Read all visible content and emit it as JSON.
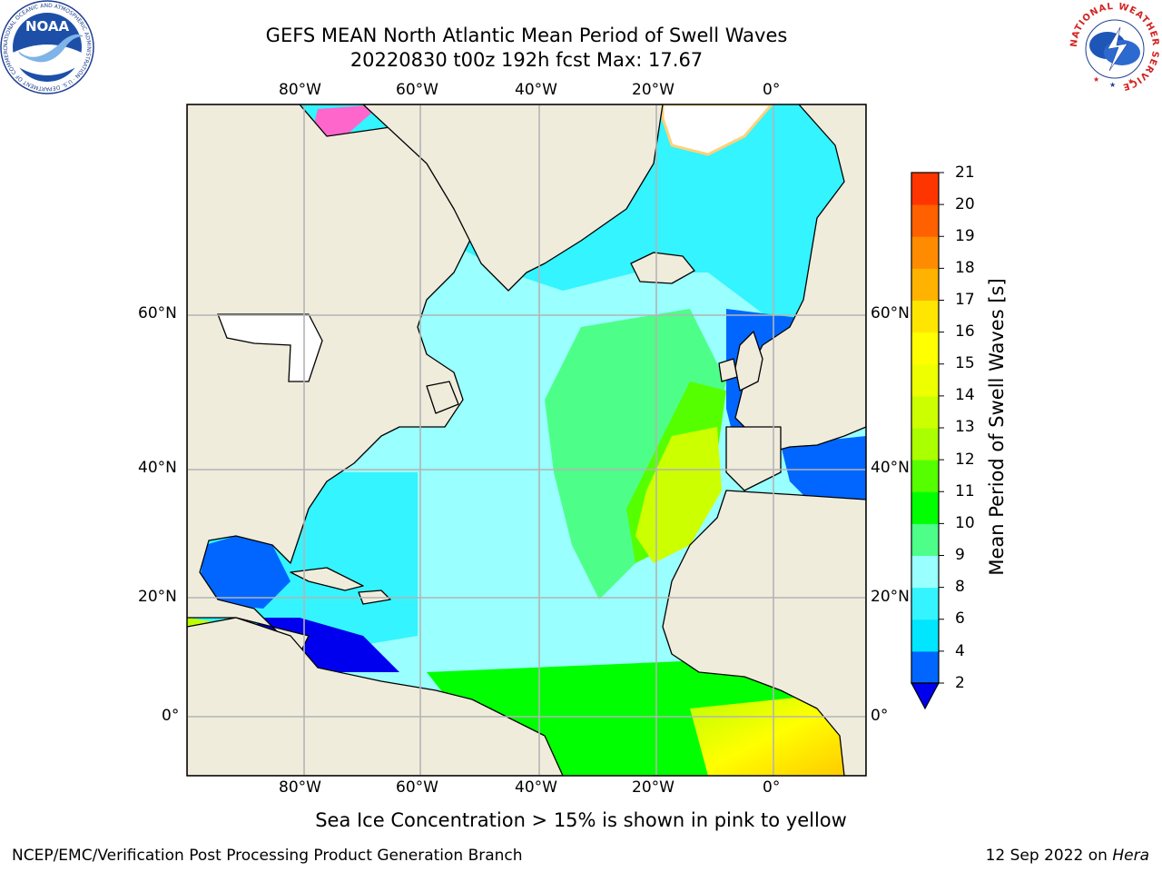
{
  "header": {
    "title_line1": "GEFS MEAN North Atlantic Mean Period of Swell Waves",
    "title_line2": "20220830 t00z 192h fcst   Max: 17.67"
  },
  "logos": {
    "left": {
      "name": "noaa-logo",
      "text": "NOAA",
      "ring_text": "NATIONAL OCEANIC AND ATMOSPHERIC ADMINISTRATION · U.S. DEPARTMENT OF COMMERCE"
    },
    "right": {
      "name": "nws-logo",
      "ring_text": "NATIONAL WEATHER SERVICE"
    }
  },
  "map": {
    "lon_range": [
      -100,
      15
    ],
    "lat_range": [
      -9,
      74
    ],
    "top_lon_labels": [
      "80°W",
      "60°W",
      "40°W",
      "20°W",
      "0°"
    ],
    "bottom_lon_labels": [
      "80°W",
      "60°W",
      "40°W",
      "20°W",
      "0°"
    ],
    "left_lat_labels": [
      "60°N",
      "40°N",
      "20°N",
      "0°"
    ],
    "right_lat_labels": [
      "60°N",
      "40°N",
      "20°N",
      "0°"
    ],
    "land_color": "#efecdc",
    "grid_color": "#b4b4b4"
  },
  "colorbar": {
    "label": "Mean Period of Swell Waves [s]",
    "ticks": [
      "2",
      "4",
      "6",
      "8",
      "9",
      "10",
      "11",
      "12",
      "13",
      "14",
      "15",
      "16",
      "17",
      "18",
      "19",
      "20",
      "21"
    ],
    "colors": [
      "#0066ff",
      "#00e6ff",
      "#33f4ff",
      "#99ffff",
      "#4dff88",
      "#00ff00",
      "#55ff00",
      "#aaff00",
      "#ccff00",
      "#eeff00",
      "#ffff00",
      "#ffe600",
      "#ffb300",
      "#ff8c00",
      "#ff6000",
      "#ff3500",
      "#ff0000"
    ],
    "extend_color": "#0000ee"
  },
  "note": "Sea Ice Concentration > 15% is shown in pink to yellow",
  "footer": {
    "left": "NCEP/EMC/Verification Post Processing Product Generation Branch",
    "right_date": "12 Sep 2022 on ",
    "right_host": "Hera"
  }
}
